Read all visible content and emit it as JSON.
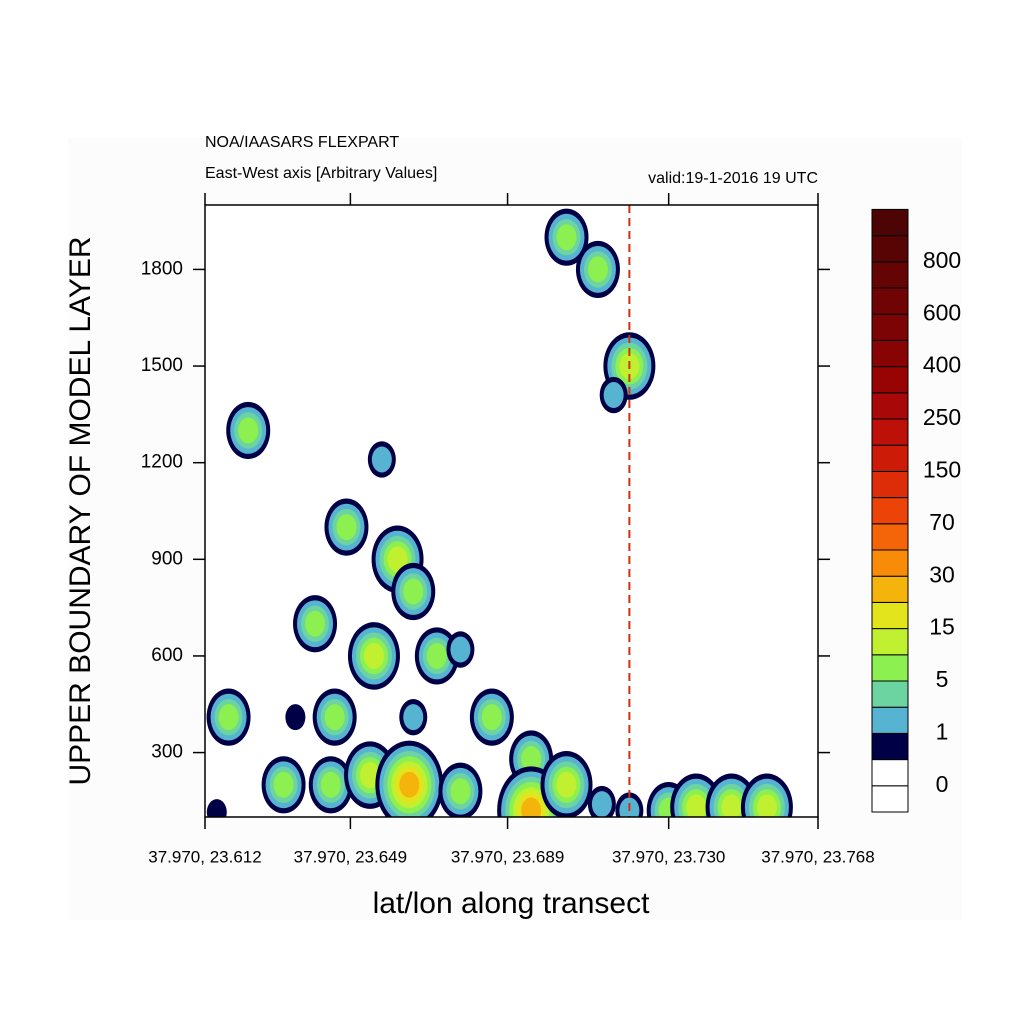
{
  "chart_data": {
    "type": "contour",
    "title": "NOA/IAASARS FLEXPART",
    "subtitle": "East-West axis [Arbitrary Values]",
    "annotation": "valid:19-1-2016 19 UTC",
    "xlabel": "lat/lon along transect",
    "ylabel": "UPPER BOUNDARY OF MODEL LAYER",
    "xlim": [
      23.612,
      23.768
    ],
    "xticks": [
      {
        "value": 23.612,
        "label": "37.970, 23.612"
      },
      {
        "value": 23.649,
        "label": "37.970, 23.649"
      },
      {
        "value": 23.689,
        "label": "37.970, 23.689"
      },
      {
        "value": 23.73,
        "label": "37.970, 23.730"
      },
      {
        "value": 23.768,
        "label": "37.970, 23.768"
      }
    ],
    "ylim": [
      100,
      2000
    ],
    "yticks": [
      300,
      600,
      900,
      1200,
      1500,
      1800
    ],
    "vline": 23.72,
    "vline_color": "#d03010",
    "x": [
      23.704,
      23.712,
      23.72,
      23.716,
      23.623,
      23.657,
      23.648,
      23.661,
      23.665,
      23.64,
      23.655,
      23.671,
      23.677,
      23.618,
      23.635,
      23.645,
      23.665,
      23.685,
      23.632,
      23.644,
      23.654,
      23.664,
      23.677,
      23.695,
      23.695,
      23.704,
      23.713,
      23.72,
      23.615,
      23.73,
      23.737,
      23.746,
      23.755
    ],
    "y": [
      1900,
      1800,
      1500,
      1410,
      1300,
      1210,
      1000,
      900,
      800,
      700,
      600,
      600,
      620,
      410,
      410,
      410,
      410,
      410,
      200,
      200,
      230,
      200,
      180,
      280,
      120,
      200,
      140,
      120,
      115,
      120,
      130,
      130,
      130
    ],
    "values": [
      7,
      7,
      12,
      2,
      7,
      2,
      7,
      12,
      7,
      7,
      12,
      7,
      2,
      7,
      0.8,
      7,
      2,
      7,
      7,
      7,
      12,
      25,
      7,
      7,
      25,
      12,
      2,
      2,
      0.8,
      7,
      12,
      12,
      12
    ],
    "colorbar": {
      "labels": [
        0,
        1,
        5,
        15,
        30,
        70,
        150,
        250,
        400,
        600,
        800
      ],
      "colors": [
        "#ffffff",
        "#ffffff",
        "#000046",
        "#56b4d2",
        "#6cd4a0",
        "#8cf050",
        "#c0f030",
        "#e4e41c",
        "#f4b40c",
        "#f88c08",
        "#f46408",
        "#ec4408",
        "#dc2c08",
        "#cc1c08",
        "#bc1008",
        "#a80808",
        "#980404",
        "#880404",
        "#7c0404",
        "#700404",
        "#640404",
        "#580404",
        "#4c0404"
      ]
    }
  }
}
